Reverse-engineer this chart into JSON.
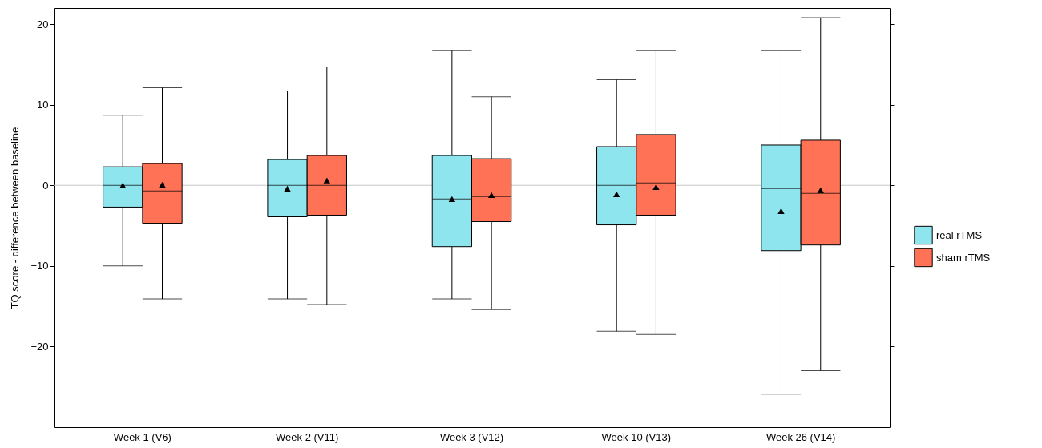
{
  "chart_data": {
    "type": "box",
    "ylabel": "TQ score - difference between baseline",
    "categories": [
      "Week 1 (V6)",
      "Week 2 (V11)",
      "Week 3 (V12)",
      "Week 10 (V13)",
      "Week 26 (V14)"
    ],
    "series": [
      {
        "name": "real rTMS",
        "color": "#8ee5ee",
        "boxes": [
          {
            "low": -10,
            "q1": -2.7,
            "median": 0,
            "q3": 2.3,
            "high": 8.7,
            "mean": 0
          },
          {
            "low": -14.1,
            "q1": -3.9,
            "median": 0,
            "q3": 3.2,
            "high": 11.7,
            "mean": -0.4
          },
          {
            "low": -14.1,
            "q1": -7.6,
            "median": -1.7,
            "q3": 3.7,
            "high": 16.7,
            "mean": -1.7
          },
          {
            "low": -18.1,
            "q1": -4.9,
            "median": 0,
            "q3": 4.8,
            "high": 13.1,
            "mean": -1.1
          },
          {
            "low": -25.9,
            "q1": -8.1,
            "median": -0.4,
            "q3": 5.0,
            "high": 16.7,
            "mean": -3.2
          }
        ]
      },
      {
        "name": "sham rTMS",
        "color": "#ff7256",
        "boxes": [
          {
            "low": -14.1,
            "q1": -4.7,
            "median": -0.7,
            "q3": 2.7,
            "high": 12.1,
            "mean": 0.1
          },
          {
            "low": -14.8,
            "q1": -3.7,
            "median": 0,
            "q3": 3.7,
            "high": 14.7,
            "mean": 0.6
          },
          {
            "low": -15.4,
            "q1": -4.5,
            "median": -1.4,
            "q3": 3.3,
            "high": 11.0,
            "mean": -1.2
          },
          {
            "low": -18.5,
            "q1": -3.7,
            "median": 0.3,
            "q3": 6.3,
            "high": 16.7,
            "mean": -0.2
          },
          {
            "low": -23.0,
            "q1": -7.4,
            "median": -1.0,
            "q3": 5.6,
            "high": 20.8,
            "mean": -0.6
          }
        ]
      }
    ],
    "ylim": [
      -30,
      22
    ],
    "yticks": [
      -20,
      -10,
      0,
      10,
      20
    ],
    "grid": false,
    "legend": "right",
    "marker": "triangle",
    "ref_lines": [
      {
        "axis": "y",
        "value": 0,
        "color": "#c8c8c8"
      }
    ]
  }
}
